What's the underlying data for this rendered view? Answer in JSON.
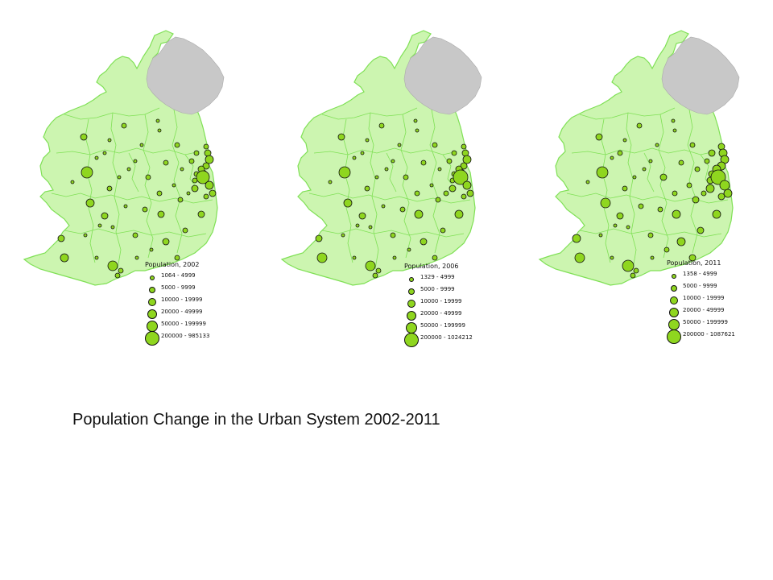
{
  "maps": [
    {
      "legend_title": "Population, 2002",
      "legend_items": [
        "1064 - 4999",
        "5000 - 9999",
        "10000 - 19999",
        "20000 - 49999",
        "50000 - 199999",
        "200000 - 985133"
      ]
    },
    {
      "legend_title": "Population, 2006",
      "legend_items": [
        "1329 - 4999",
        "5000 - 9999",
        "10000 - 19999",
        "20000 - 49999",
        "50000 - 199999",
        "200000 - 1024212"
      ]
    },
    {
      "legend_title": "Population, 2011",
      "legend_items": [
        "1358 - 4999",
        "5000 - 9999",
        "10000 - 19999",
        "20000 - 49999",
        "50000 - 199999",
        "200000 - 1087621"
      ]
    }
  ],
  "caption": "Population Change in the Urban System 2002-2011",
  "colors": {
    "land_fill": "#ccf5b0",
    "land_border": "#7fe055",
    "northern_ireland": "#c8c8c8",
    "town_fill": "#8fd61f",
    "town_stroke": "#111111"
  }
}
